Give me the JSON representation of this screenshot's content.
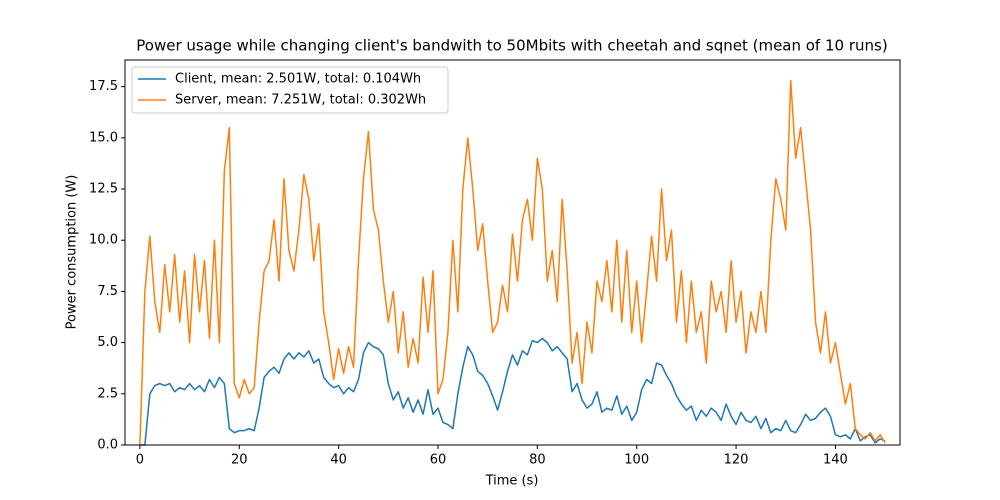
{
  "chart_data": {
    "type": "line",
    "title": "Power usage while changing client's bandwith to 50Mbits with cheetah and sqnet (mean of 10 runs)",
    "xlabel": "Time (s)",
    "ylabel": "Power consumption (W)",
    "xlim": [
      -3,
      153
    ],
    "ylim": [
      0,
      18.8
    ],
    "xticks": [
      0,
      20,
      40,
      60,
      80,
      100,
      120,
      140
    ],
    "yticks": [
      {
        "value": 0,
        "label": "0.0"
      },
      {
        "value": 2.5,
        "label": "2.5"
      },
      {
        "value": 5,
        "label": "5.0"
      },
      {
        "value": 7.5,
        "label": "7.5"
      },
      {
        "value": 10,
        "label": "10.0"
      },
      {
        "value": 12.5,
        "label": "12.5"
      },
      {
        "value": 15,
        "label": "15.0"
      },
      {
        "value": 17.5,
        "label": "17.5"
      }
    ],
    "legend": "upper left",
    "x": [
      0,
      1,
      2,
      3,
      4,
      5,
      6,
      7,
      8,
      9,
      10,
      11,
      12,
      13,
      14,
      15,
      16,
      17,
      18,
      19,
      20,
      21,
      22,
      23,
      24,
      25,
      26,
      27,
      28,
      29,
      30,
      31,
      32,
      33,
      34,
      35,
      36,
      37,
      38,
      39,
      40,
      41,
      42,
      43,
      44,
      45,
      46,
      47,
      48,
      49,
      50,
      51,
      52,
      53,
      54,
      55,
      56,
      57,
      58,
      59,
      60,
      61,
      62,
      63,
      64,
      65,
      66,
      67,
      68,
      69,
      70,
      71,
      72,
      73,
      74,
      75,
      76,
      77,
      78,
      79,
      80,
      81,
      82,
      83,
      84,
      85,
      86,
      87,
      88,
      89,
      90,
      91,
      92,
      93,
      94,
      95,
      96,
      97,
      98,
      99,
      100,
      101,
      102,
      103,
      104,
      105,
      106,
      107,
      108,
      109,
      110,
      111,
      112,
      113,
      114,
      115,
      116,
      117,
      118,
      119,
      120,
      121,
      122,
      123,
      124,
      125,
      126,
      127,
      128,
      129,
      130,
      131,
      132,
      133,
      134,
      135,
      136,
      137,
      138,
      139,
      140,
      141,
      142,
      143,
      144,
      145,
      146,
      147,
      148,
      149,
      150
    ],
    "series": [
      {
        "name": "Client, mean: 2.501W, total: 0.104Wh",
        "color": "#1f77b4",
        "values": [
          0,
          0,
          2.5,
          2.9,
          3.0,
          2.9,
          3.0,
          2.6,
          2.8,
          2.7,
          3.0,
          2.7,
          2.9,
          2.6,
          3.2,
          2.8,
          3.3,
          3.0,
          0.8,
          0.6,
          0.7,
          0.7,
          0.8,
          0.7,
          1.8,
          3.3,
          3.6,
          3.8,
          3.5,
          4.2,
          4.5,
          4.2,
          4.5,
          4.3,
          4.6,
          4.0,
          4.2,
          3.3,
          3.0,
          2.8,
          2.9,
          2.5,
          2.8,
          2.6,
          3.2,
          4.5,
          5.0,
          4.8,
          4.7,
          4.4,
          3.0,
          2.2,
          2.6,
          1.8,
          2.3,
          1.6,
          2.2,
          1.5,
          2.7,
          1.5,
          1.8,
          1.1,
          1.0,
          0.8,
          2.5,
          3.8,
          4.8,
          4.4,
          3.6,
          3.4,
          3.0,
          2.4,
          1.7,
          2.6,
          3.6,
          4.4,
          3.9,
          4.6,
          4.4,
          5.1,
          5.0,
          5.2,
          5.0,
          4.6,
          4.8,
          4.5,
          4.2,
          2.6,
          3.0,
          2.2,
          1.8,
          2.0,
          2.6,
          1.6,
          1.8,
          1.7,
          2.4,
          1.5,
          1.9,
          1.2,
          1.6,
          2.7,
          3.2,
          3.0,
          4.0,
          3.9,
          3.4,
          3.0,
          2.4,
          2.0,
          1.7,
          1.9,
          1.2,
          1.7,
          1.4,
          1.8,
          1.6,
          1.2,
          2.0,
          1.4,
          1.0,
          1.6,
          1.2,
          1.1,
          1.4,
          0.8,
          1.3,
          0.6,
          0.8,
          0.7,
          1.2,
          0.7,
          0.6,
          1.0,
          1.5,
          1.2,
          1.3,
          1.6,
          1.8,
          1.4,
          0.5,
          0.4,
          0.5,
          0.3,
          0.8,
          0.2,
          0.4,
          0.5,
          0.1,
          0.3,
          0.2
        ]
      },
      {
        "name": "Server, mean: 7.251W, total: 0.302Wh",
        "color": "#ff7f0e",
        "values": [
          0,
          7.5,
          10.2,
          7.0,
          5.5,
          8.8,
          6.5,
          9.3,
          6.0,
          8.5,
          5.0,
          9.3,
          6.5,
          9.0,
          5.2,
          10.0,
          5.0,
          13.4,
          15.5,
          3.0,
          2.3,
          3.2,
          2.5,
          2.8,
          6.0,
          8.5,
          9.0,
          11.0,
          8.0,
          13.0,
          9.5,
          8.5,
          10.5,
          13.2,
          12.0,
          9.0,
          10.8,
          6.5,
          5.0,
          3.2,
          4.7,
          3.5,
          4.8,
          3.8,
          9.0,
          13.0,
          15.3,
          11.5,
          10.5,
          8.0,
          6.0,
          7.5,
          4.5,
          6.5,
          3.8,
          5.2,
          4.0,
          8.2,
          5.5,
          8.5,
          2.5,
          3.2,
          5.5,
          10.0,
          6.5,
          12.5,
          15.0,
          12.5,
          9.5,
          10.8,
          8.0,
          5.5,
          6.0,
          7.8,
          6.5,
          10.3,
          8.0,
          11.0,
          12.0,
          10.0,
          14.0,
          12.5,
          8.0,
          9.5,
          7.0,
          12.0,
          8.5,
          4.0,
          5.5,
          3.0,
          6.0,
          4.5,
          8.0,
          7.0,
          9.0,
          6.5,
          10.0,
          6.0,
          9.5,
          5.5,
          8.0,
          5.0,
          7.5,
          10.2,
          8.0,
          12.5,
          9.0,
          10.5,
          6.0,
          8.5,
          5.0,
          8.0,
          5.5,
          6.5,
          4.0,
          8.0,
          6.5,
          7.5,
          5.5,
          9.0,
          6.0,
          7.5,
          4.5,
          6.5,
          5.5,
          7.5,
          5.5,
          10.0,
          13.0,
          12.0,
          10.5,
          17.8,
          14.0,
          15.5,
          13.0,
          10.5,
          6.0,
          4.5,
          6.5,
          4.0,
          5.0,
          3.5,
          2.0,
          3.0,
          0.8,
          0.5,
          0.3,
          0.6,
          0.2,
          0.5,
          0.1
        ]
      }
    ]
  }
}
